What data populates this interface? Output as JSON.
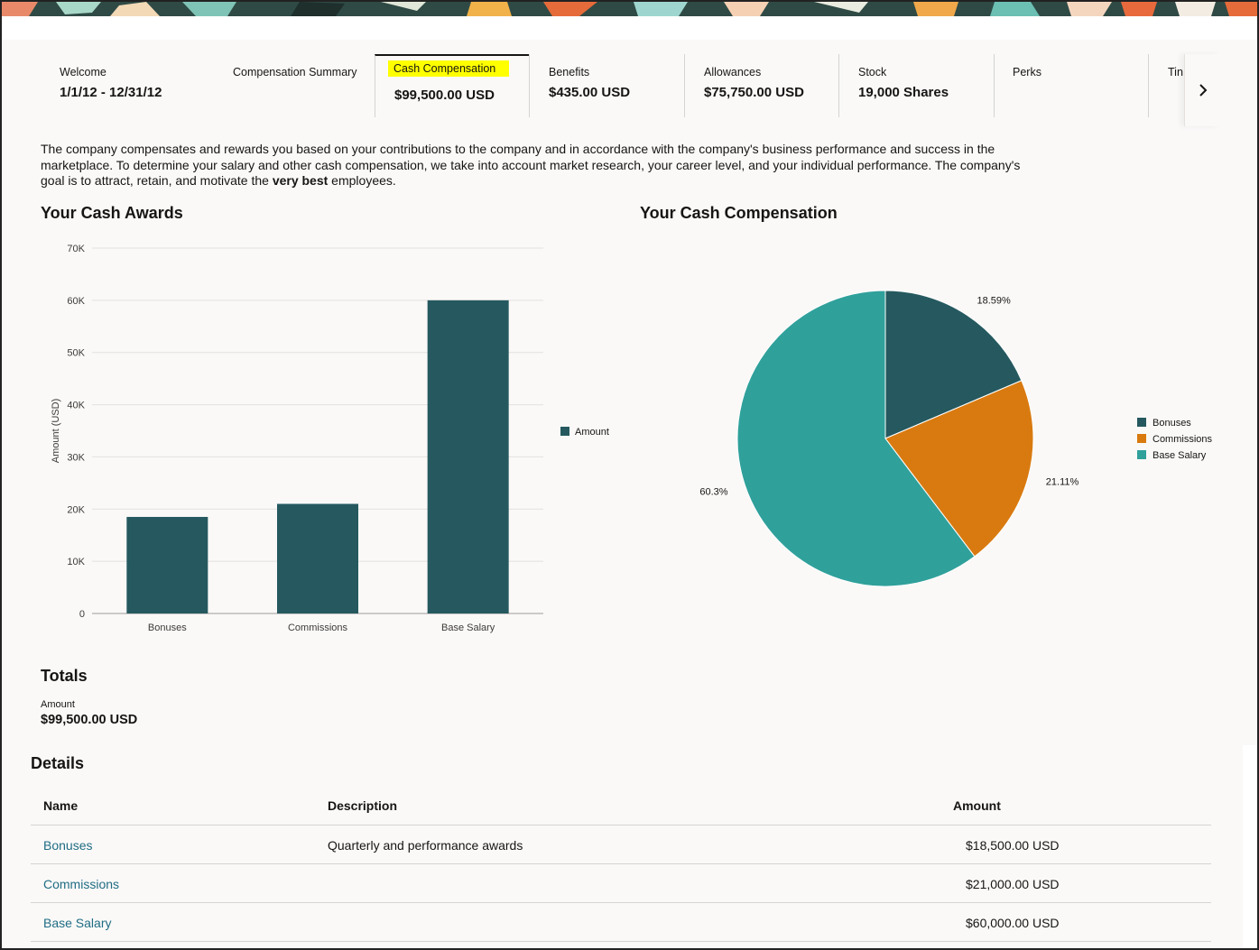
{
  "tabs": [
    {
      "label": "Welcome",
      "value": "1/1/12 - 12/31/12"
    },
    {
      "label": "Compensation Summary",
      "value": ""
    },
    {
      "label": "Cash Compensation",
      "value": "$99,500.00 USD",
      "active": true
    },
    {
      "label": "Benefits",
      "value": "$435.00 USD"
    },
    {
      "label": "Allowances",
      "value": "$75,750.00 USD"
    },
    {
      "label": "Stock",
      "value": "19,000 Shares"
    },
    {
      "label": "Perks",
      "value": ""
    },
    {
      "label": "Tin",
      "value": ""
    }
  ],
  "intro": {
    "before": "The company compensates and rewards you based on your contributions to the company and in accordance with the company's business performance and success in the marketplace. To determine your salary and other cash compensation, we take into account market research, your career level, and your individual performance. The company's goal is to attract, retain, and motivate the ",
    "bold": "very best",
    "after": " employees."
  },
  "bar_title": "Your Cash Awards",
  "pie_title": "Your Cash Compensation",
  "chart_data": [
    {
      "type": "bar",
      "title": "Your Cash Awards",
      "categories": [
        "Bonuses",
        "Commissions",
        "Base Salary"
      ],
      "series": [
        {
          "name": "Amount",
          "values": [
            18500,
            21000,
            60000
          ]
        }
      ],
      "ylabel": "Amount (USD)",
      "ylim": [
        0,
        70000
      ],
      "yticks": [
        "0",
        "10K",
        "20K",
        "30K",
        "40K",
        "50K",
        "60K",
        "70K"
      ],
      "grid": true,
      "legend": "right",
      "color": "#25595f"
    },
    {
      "type": "pie",
      "title": "Your Cash Compensation",
      "labels": [
        "Bonuses",
        "Commissions",
        "Base Salary"
      ],
      "values": [
        18500,
        21000,
        60000
      ],
      "data_labels": [
        "18.59%",
        "21.11%",
        "60.3%"
      ],
      "colors": [
        "#25595f",
        "#d97a10",
        "#30a09b"
      ],
      "legend": "right"
    }
  ],
  "totals": {
    "title": "Totals",
    "label": "Amount",
    "value": "$99,500.00 USD"
  },
  "details": {
    "title": "Details",
    "headers": {
      "name": "Name",
      "description": "Description",
      "amount": "Amount"
    },
    "rows": [
      {
        "name": "Bonuses",
        "description": "Quarterly and performance awards",
        "amount": "$18,500.00 USD"
      },
      {
        "name": "Commissions",
        "description": "",
        "amount": "$21,000.00 USD"
      },
      {
        "name": "Base Salary",
        "description": "",
        "amount": "$60,000.00 USD"
      }
    ]
  },
  "icons": {
    "next": "chevron-right-icon"
  }
}
